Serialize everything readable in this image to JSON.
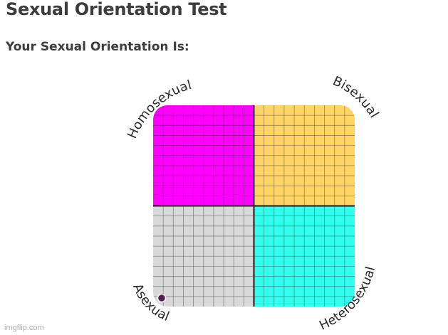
{
  "page": {
    "title": "Sexual Orientation Test",
    "result_heading": "Your Sexual Orientation Is:"
  },
  "chart": {
    "labels": {
      "top_left": "Homosexual",
      "top_right": "Bisexual",
      "bottom_left": "Asexual",
      "bottom_right": "Heterosexual"
    },
    "quadrant_colors": {
      "top_left": "#ff00ff",
      "top_right": "#ffd466",
      "bottom_left": "#d9d9d9",
      "bottom_right": "#33ffee"
    },
    "grid_divisions": 20,
    "marker": {
      "homosexual_heterosexual_axis": -1.0,
      "sexual_asexual_axis": -1.0,
      "color": "#5a1a5a"
    }
  },
  "watermark": {
    "text": "imgflip.com"
  }
}
